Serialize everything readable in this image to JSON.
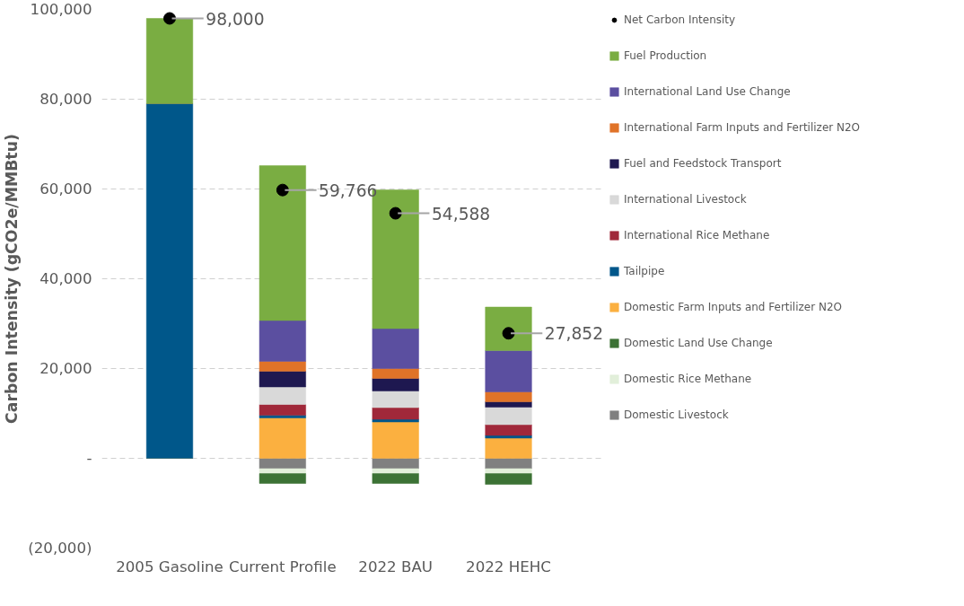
{
  "chart_data": {
    "type": "bar",
    "stacked": true,
    "ylabel": "Carbon Intensity (gCO2e/MMBtu)",
    "categories": [
      "2005 Gasoline",
      "Current Profile",
      "2022 BAU",
      "2022 HEHC"
    ],
    "series": [
      {
        "name": "Domestic Livestock",
        "color": "#808080",
        "values": [
          0,
          -2300,
          -2300,
          -2300
        ]
      },
      {
        "name": "Domestic Rice Methane",
        "color": "#e2efda",
        "values": [
          0,
          -1100,
          -1100,
          -1100
        ]
      },
      {
        "name": "Domestic Land Use Change",
        "color": "#3c7235",
        "values": [
          0,
          -2200,
          -2200,
          -2400
        ]
      },
      {
        "name": "Domestic Farm Inputs and Fertilizer N2O",
        "color": "#fbb040",
        "values": [
          0,
          9000,
          8100,
          4500
        ]
      },
      {
        "name": "Tailpipe",
        "color": "#00578a",
        "values": [
          79000,
          600,
          600,
          600
        ]
      },
      {
        "name": "International Rice Methane",
        "color": "#a0283a",
        "values": [
          0,
          2400,
          2600,
          2400
        ]
      },
      {
        "name": "International Livestock",
        "color": "#d9d9d9",
        "values": [
          0,
          3900,
          3700,
          3900
        ]
      },
      {
        "name": "Fuel and Feedstock Transport",
        "color": "#1e1850",
        "values": [
          0,
          3500,
          2800,
          1200
        ]
      },
      {
        "name": "International Farm Inputs and Fertilizer N2O",
        "color": "#e07328",
        "values": [
          0,
          2200,
          2200,
          2200
        ]
      },
      {
        "name": "International Land Use Change",
        "color": "#5b4fa0",
        "values": [
          0,
          9100,
          8900,
          9200
        ]
      },
      {
        "name": "Fuel Production",
        "color": "#7aad42",
        "values": [
          19000,
          34500,
          30900,
          9700
        ]
      },
      {
        "name": "Net Carbon Intensity",
        "type": "scatter",
        "color": "#000000",
        "values": [
          98000,
          59766,
          54588,
          27852
        ],
        "value_labels": [
          "98,000",
          "59,766",
          "54,588",
          "27,852"
        ]
      }
    ],
    "ylim": [
      -20000,
      100000
    ],
    "yticks": [
      {
        "value": -20000,
        "label": "(20,000)"
      },
      {
        "value": 0,
        "label": "-"
      },
      {
        "value": 20000,
        "label": "20,000"
      },
      {
        "value": 40000,
        "label": "40,000"
      },
      {
        "value": 60000,
        "label": "60,000"
      },
      {
        "value": 80000,
        "label": "80,000"
      },
      {
        "value": 100000,
        "label": "100,000"
      }
    ],
    "grid": "y",
    "legend": "right",
    "marker": "circle"
  }
}
